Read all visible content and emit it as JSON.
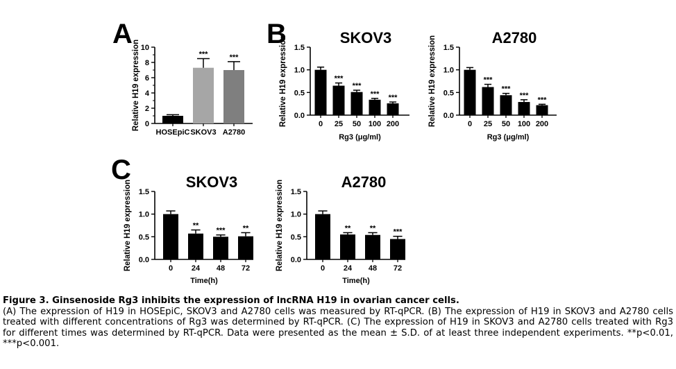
{
  "panels": {
    "A": "A",
    "B": "B",
    "C": "C"
  },
  "chart_data": [
    {
      "panel": "A",
      "type": "bar",
      "title": "",
      "xlabel": "",
      "ylabel": "Relative H19 expression",
      "ylim": [
        0,
        10
      ],
      "yticks": [
        "0",
        "2",
        "4",
        "6",
        "8",
        "10"
      ],
      "categories": [
        "HOSEpiC",
        "SKOV3",
        "A2780"
      ],
      "values": [
        1.0,
        7.3,
        7.0
      ],
      "errors": [
        0.15,
        1.2,
        1.1
      ],
      "significance": [
        "",
        "***",
        "***"
      ],
      "colors": [
        "#000000",
        "#a6a6a6",
        "#7f7f7f"
      ]
    },
    {
      "panel": "B",
      "type": "bar",
      "title": "SKOV3",
      "xlabel": "Rg3 (μg/ml)",
      "ylabel": "Relative H19 expression",
      "ylim": [
        0,
        1.5
      ],
      "yticks": [
        "0.0",
        "0.5",
        "1.0",
        "1.5"
      ],
      "categories": [
        "0",
        "25",
        "50",
        "100",
        "200"
      ],
      "values": [
        1.0,
        0.65,
        0.51,
        0.34,
        0.26
      ],
      "errors": [
        0.06,
        0.06,
        0.04,
        0.03,
        0.03
      ],
      "significance": [
        "",
        "***",
        "***",
        "***",
        "***"
      ],
      "colors": [
        "#000000"
      ]
    },
    {
      "panel": "B",
      "type": "bar",
      "title": "A2780",
      "xlabel": "Rg3 (μg/ml)",
      "ylabel": "Relative H19 expression",
      "ylim": [
        0,
        1.5
      ],
      "yticks": [
        "0.0",
        "0.5",
        "1.0",
        "1.5"
      ],
      "categories": [
        "0",
        "25",
        "50",
        "100",
        "200"
      ],
      "values": [
        1.0,
        0.62,
        0.44,
        0.29,
        0.22
      ],
      "errors": [
        0.05,
        0.06,
        0.04,
        0.05,
        0.02
      ],
      "significance": [
        "",
        "***",
        "***",
        "***",
        "***"
      ],
      "colors": [
        "#000000"
      ]
    },
    {
      "panel": "C",
      "type": "bar",
      "title": "SKOV3",
      "xlabel": "Time(h)",
      "ylabel": "Relative H19 expression",
      "ylim": [
        0,
        1.5
      ],
      "yticks": [
        "0.0",
        "0.5",
        "1.0",
        "1.5"
      ],
      "categories": [
        "0",
        "24",
        "48",
        "72"
      ],
      "values": [
        1.0,
        0.57,
        0.5,
        0.51
      ],
      "errors": [
        0.07,
        0.08,
        0.04,
        0.08
      ],
      "significance": [
        "",
        "**",
        "***",
        "**"
      ],
      "colors": [
        "#000000"
      ]
    },
    {
      "panel": "C",
      "type": "bar",
      "title": "A2780",
      "xlabel": "Time(h)",
      "ylabel": "Relative H19 expression",
      "ylim": [
        0,
        1.5
      ],
      "yticks": [
        "0.0",
        "0.5",
        "1.0",
        "1.5"
      ],
      "categories": [
        "0",
        "24",
        "48",
        "72"
      ],
      "values": [
        1.0,
        0.55,
        0.54,
        0.45
      ],
      "errors": [
        0.07,
        0.04,
        0.05,
        0.06
      ],
      "significance": [
        "",
        "**",
        "**",
        "***"
      ],
      "colors": [
        "#000000"
      ]
    }
  ],
  "caption": {
    "title": "Figure 3. Ginsenoside Rg3 inhibits the expression of lncRNA H19 in ovarian cancer cells.",
    "body": "(A) The expression of H19 in HOSEpiC, SKOV3 and A2780 cells was measured by RT-qPCR. (B) The expression of H19 in SKOV3 and A2780 cells treated with different concentrations of Rg3 was determined by RT-qPCR. (C) The expression of H19 in SKOV3 and A2780 cells treated with Rg3 for different times was determined by RT-qPCR. Data were presented as the mean ± S.D. of at least three independent experiments. **p<0.01, ***p<0.001."
  }
}
